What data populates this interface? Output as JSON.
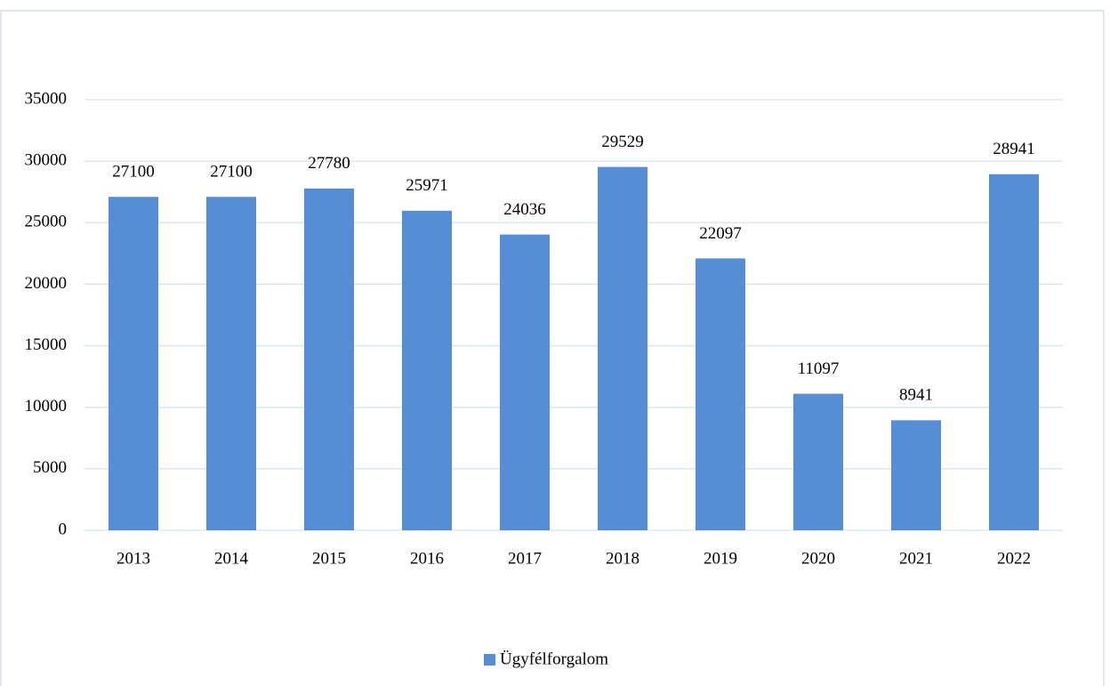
{
  "chart_data": {
    "type": "bar",
    "categories": [
      "2013",
      "2014",
      "2015",
      "2016",
      "2017",
      "2018",
      "2019",
      "2020",
      "2021",
      "2022"
    ],
    "series": [
      {
        "name": "Ügyfélforgalom",
        "color": "#558ed5",
        "values": [
          27100,
          27100,
          27780,
          25971,
          24036,
          29529,
          22097,
          11097,
          8941,
          28941
        ]
      }
    ],
    "ylim": [
      0,
      35000
    ],
    "yticks": [
      0,
      5000,
      10000,
      15000,
      20000,
      25000,
      30000,
      35000
    ],
    "grid": true,
    "legend": "bottom"
  }
}
